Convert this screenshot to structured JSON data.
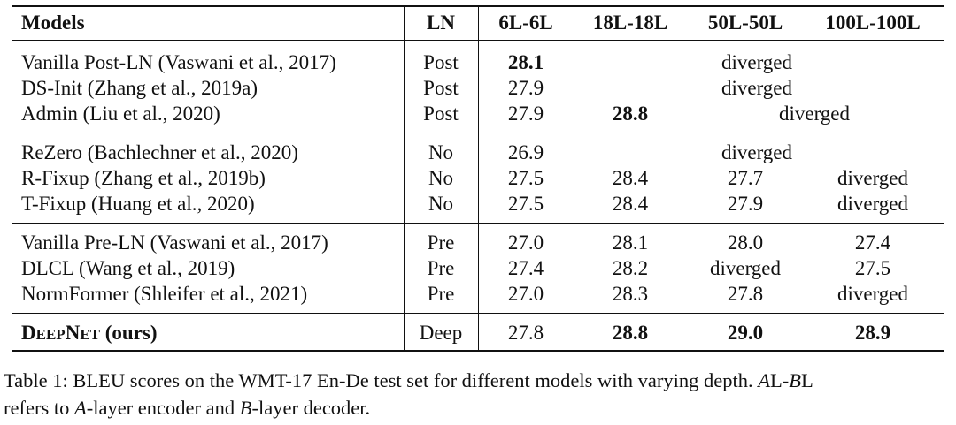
{
  "header": {
    "models": "Models",
    "ln": "LN",
    "cols": [
      "6L-6L",
      "18L-18L",
      "50L-50L",
      "100L-100L"
    ]
  },
  "rows": [
    {
      "model": "Vanilla Post-LN (Vaswani et al., 2017)",
      "ln": "Post",
      "c6": "28.1",
      "span": "diverged"
    },
    {
      "model": "DS-Init (Zhang et al., 2019a)",
      "ln": "Post",
      "c6": "27.9",
      "span": "diverged"
    },
    {
      "model": "Admin (Liu et al., 2020)",
      "ln": "Post",
      "c6": "27.9",
      "c18": "28.8",
      "span": "diverged"
    },
    {
      "model": "ReZero (Bachlechner et al., 2020)",
      "ln": "No",
      "c6": "26.9",
      "span": "diverged"
    },
    {
      "model": "R-Fixup (Zhang et al., 2019b)",
      "ln": "No",
      "c6": "27.5",
      "c18": "28.4",
      "c50": "27.7",
      "c100": "diverged"
    },
    {
      "model": "T-Fixup (Huang et al., 2020)",
      "ln": "No",
      "c6": "27.5",
      "c18": "28.4",
      "c50": "27.9",
      "c100": "diverged"
    },
    {
      "model": "Vanilla Pre-LN (Vaswani et al., 2017)",
      "ln": "Pre",
      "c6": "27.0",
      "c18": "28.1",
      "c50": "28.0",
      "c100": "27.4"
    },
    {
      "model": "DLCL (Wang et al., 2019)",
      "ln": "Pre",
      "c6": "27.4",
      "c18": "28.2",
      "c50": "diverged",
      "c100": "27.5"
    },
    {
      "model": "NormFormer (Shleifer et al., 2021)",
      "ln": "Pre",
      "c6": "27.0",
      "c18": "28.3",
      "c50": "27.8",
      "c100": "diverged"
    },
    {
      "model_d": "D",
      "model_eep": "EEP",
      "model_n": "N",
      "model_et": "ET",
      "model_rest": " (ours)",
      "ln": "Deep",
      "c6": "27.8",
      "c18": "28.8",
      "c50": "29.0",
      "c100": "28.9"
    }
  ],
  "caption": {
    "p1": "Table 1: BLEU scores on the WMT-17 En-De test set for different models with varying depth. ",
    "a1": "A",
    "p2": "L-",
    "b1": "B",
    "p3": "L",
    "p4": "refers to ",
    "a2": "A",
    "p5": "-layer encoder and ",
    "b2": "B",
    "p6": "-layer decoder."
  }
}
